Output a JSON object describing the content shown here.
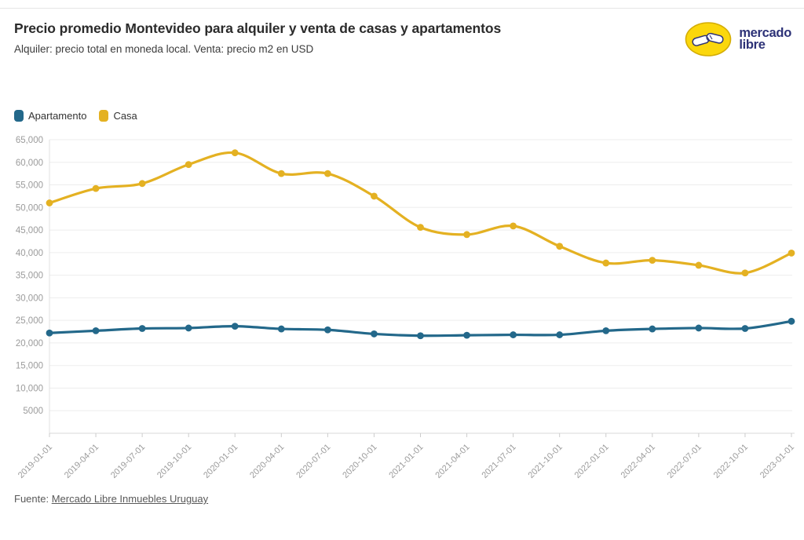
{
  "header": {
    "title": "Precio promedio Montevideo para alquiler y venta de casas y apartamentos",
    "subtitle": "Alquiler: precio total en moneda local. Venta: precio m2 en USD"
  },
  "logo": {
    "line1": "mercado",
    "line2": "libre"
  },
  "legend": {
    "items": [
      {
        "label": "Apartamento",
        "color": "#23688a"
      },
      {
        "label": "Casa",
        "color": "#e4b122"
      }
    ]
  },
  "footer": {
    "source_prefix": "Fuente: ",
    "source_link": "Mercado Libre Inmuebles Uruguay"
  },
  "colors": {
    "grid": "#ededed",
    "axis_line": "#e0e0e0",
    "baseline": "#d9d9d9",
    "tick": "#cccccc",
    "tick_label": "#9b9b9b"
  },
  "chart_data": {
    "type": "line",
    "title": "Precio promedio Montevideo para alquiler y venta de casas y apartamentos",
    "xlabel": "",
    "ylabel": "",
    "ylim": [
      0,
      65000
    ],
    "grid": "horizontal",
    "legend_position": "top-left",
    "categories": [
      "2019-01-01",
      "2019-04-01",
      "2019-07-01",
      "2019-10-01",
      "2020-01-01",
      "2020-04-01",
      "2020-07-01",
      "2020-10-01",
      "2021-01-01",
      "2021-04-01",
      "2021-07-01",
      "2021-10-01",
      "2022-01-01",
      "2022-04-01",
      "2022-07-01",
      "2022-10-01",
      "2023-01-01"
    ],
    "y_ticks": [
      {
        "v": 5000,
        "label": "5000"
      },
      {
        "v": 10000,
        "label": "10,000"
      },
      {
        "v": 15000,
        "label": "15,000"
      },
      {
        "v": 20000,
        "label": "20,000"
      },
      {
        "v": 25000,
        "label": "25,000"
      },
      {
        "v": 30000,
        "label": "30,000"
      },
      {
        "v": 35000,
        "label": "35,000"
      },
      {
        "v": 40000,
        "label": "40,000"
      },
      {
        "v": 45000,
        "label": "45,000"
      },
      {
        "v": 50000,
        "label": "50,000"
      },
      {
        "v": 55000,
        "label": "55,000"
      },
      {
        "v": 60000,
        "label": "60,000"
      },
      {
        "v": 65000,
        "label": "65,000"
      }
    ],
    "series": [
      {
        "name": "Apartamento",
        "color": "#23688a",
        "values": [
          22200,
          22700,
          23200,
          23300,
          23700,
          23100,
          22900,
          22000,
          21600,
          21700,
          21800,
          21800,
          22700,
          23100,
          23300,
          23200,
          24800
        ]
      },
      {
        "name": "Casa",
        "color": "#e4b122",
        "values": [
          51000,
          54200,
          55300,
          59500,
          62100,
          57500,
          57500,
          52500,
          45600,
          44000,
          45900,
          41400,
          37700,
          38300,
          37200,
          35500,
          39900
        ]
      }
    ]
  }
}
